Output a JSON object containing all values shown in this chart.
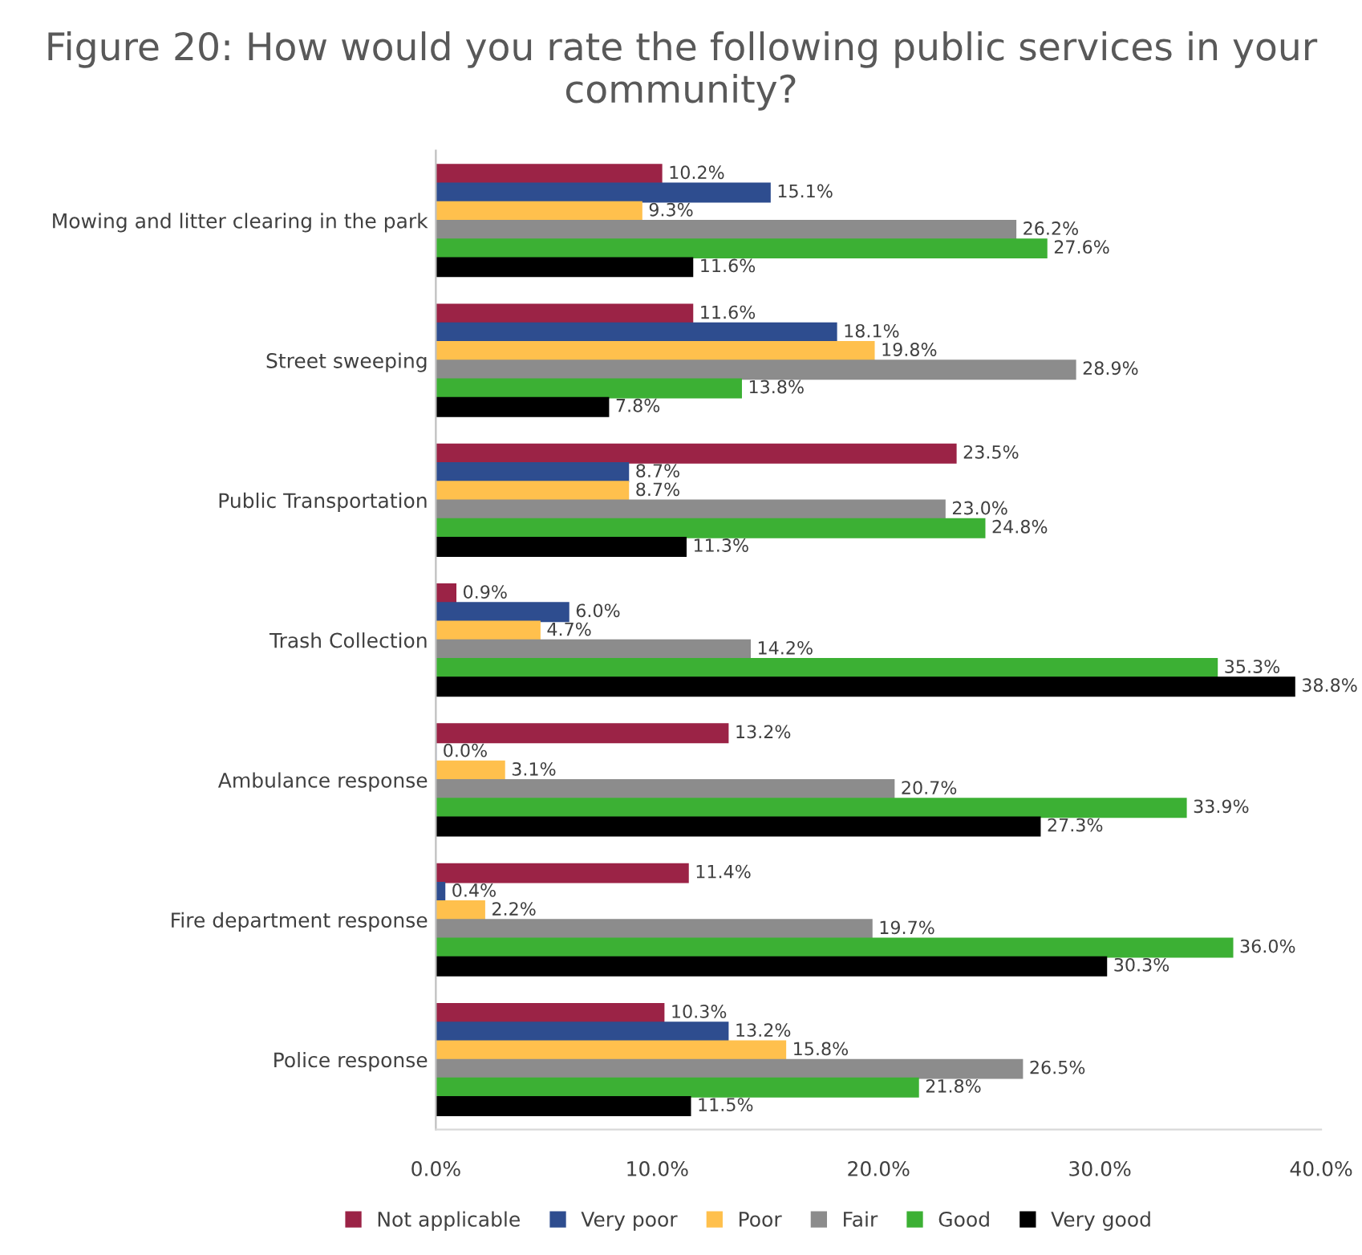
{
  "chart_data": {
    "type": "bar",
    "orientation": "horizontal",
    "title": "Figure 20: How would you rate the following public services in your community?",
    "categories": [
      "Mowing and litter clearing in the park",
      "Street sweeping",
      "Public Transportation",
      "Trash Collection",
      "Ambulance response",
      "Fire department response",
      "Police response"
    ],
    "series": [
      {
        "name": "Not applicable",
        "color": "#9b2346",
        "values": [
          10.2,
          11.6,
          23.5,
          0.9,
          13.2,
          11.4,
          10.3
        ],
        "value_labels": [
          "10.2%",
          "11.6%",
          "23.5%",
          "0.9%",
          "13.2%",
          "11.4%",
          "10.3%"
        ]
      },
      {
        "name": "Very poor",
        "color": "#2e4d8f",
        "values": [
          15.1,
          18.1,
          8.7,
          6.0,
          0.0,
          0.4,
          13.2
        ],
        "value_labels": [
          "15.1%",
          "18.1%",
          "8.7%",
          "6.0%",
          "0.0%",
          "0.4%",
          "13.2%"
        ]
      },
      {
        "name": "Poor",
        "color": "#ffc04d",
        "values": [
          9.3,
          19.8,
          8.7,
          4.7,
          3.1,
          2.2,
          15.8
        ],
        "value_labels": [
          "9.3%",
          "19.8%",
          "8.7%",
          "4.7%",
          "3.1%",
          "2.2%",
          "15.8%"
        ]
      },
      {
        "name": "Fair",
        "color": "#8c8c8c",
        "values": [
          26.2,
          28.9,
          23.0,
          14.2,
          20.7,
          19.7,
          26.5
        ],
        "value_labels": [
          "26.2%",
          "28.9%",
          "23.0%",
          "14.2%",
          "20.7%",
          "19.7%",
          "26.5%"
        ]
      },
      {
        "name": "Good",
        "color": "#3cb034",
        "values": [
          27.6,
          13.8,
          24.8,
          35.3,
          33.9,
          36.0,
          21.8
        ],
        "value_labels": [
          "27.6%",
          "13.8%",
          "24.8%",
          "35.3%",
          "33.9%",
          "36.0%",
          "21.8%"
        ]
      },
      {
        "name": "Very good",
        "color": "#000000",
        "values": [
          11.6,
          7.8,
          11.3,
          38.8,
          27.3,
          30.3,
          11.5
        ],
        "value_labels": [
          "11.6%",
          "7.8%",
          "11.3%",
          "38.8%",
          "27.3%",
          "30.3%",
          "11.5%"
        ]
      }
    ],
    "xlim": [
      0,
      40
    ],
    "xticks": [
      {
        "value": 0,
        "label": "0.0%"
      },
      {
        "value": 10,
        "label": "10.0%"
      },
      {
        "value": 20,
        "label": "20.0%"
      },
      {
        "value": 30,
        "label": "30.0%"
      },
      {
        "value": 40,
        "label": "40.0%"
      }
    ],
    "grid": false,
    "legend": "bottom"
  }
}
